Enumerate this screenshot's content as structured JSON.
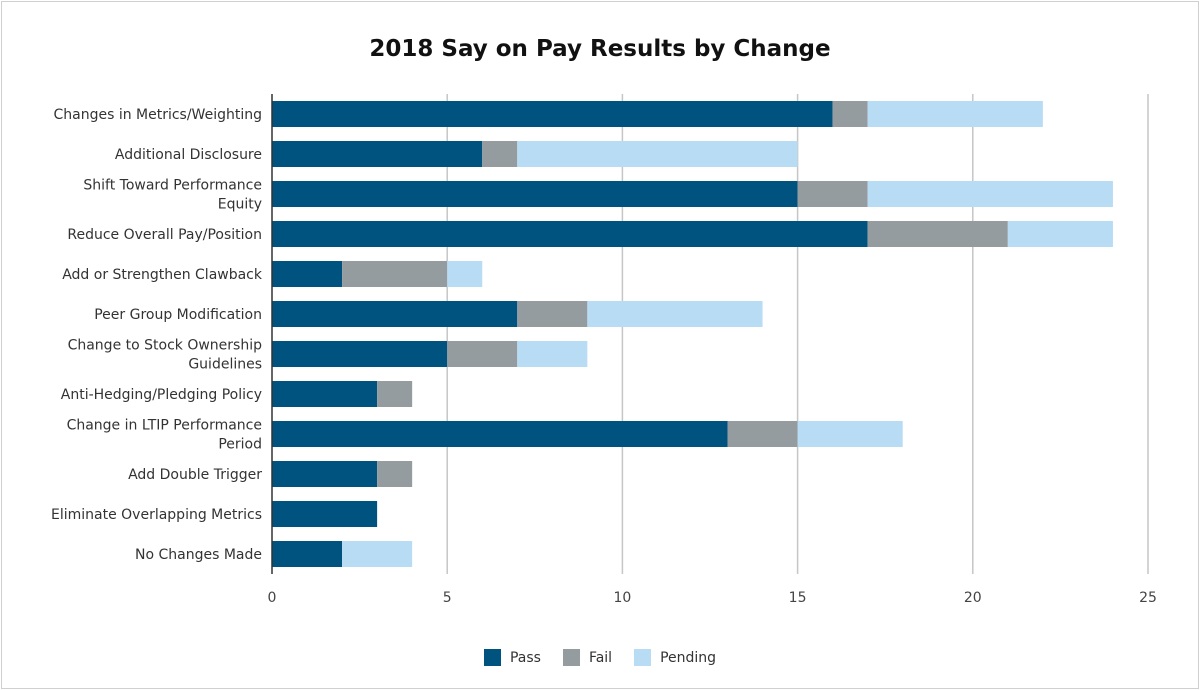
{
  "chart_data": {
    "type": "bar",
    "orientation": "horizontal",
    "stacked": true,
    "title": "2018 Say on Pay Results by Change",
    "categories": [
      "Changes in Metrics/Weighting",
      "Additional Disclosure",
      "Shift Toward Performance Equity",
      "Reduce Overall Pay/Position",
      "Add or Strengthen Clawback",
      "Peer Group Modification",
      "Change to Stock Ownership Guidelines",
      "Anti-Hedging/Pledging Policy",
      "Change in LTIP Performance Period",
      "Add Double Trigger",
      "Eliminate Overlapping Metrics",
      "No Changes Made"
    ],
    "series": [
      {
        "name": "Pass",
        "color": "#00527f",
        "values": [
          16,
          6,
          15,
          17,
          2,
          7,
          5,
          3,
          13,
          3,
          3,
          2
        ]
      },
      {
        "name": "Fail",
        "color": "#959ca0",
        "values": [
          1,
          1,
          2,
          4,
          3,
          2,
          2,
          1,
          2,
          1,
          0,
          0
        ]
      },
      {
        "name": "Pending",
        "color": "#b9dcf5",
        "values": [
          5,
          8,
          7,
          3,
          1,
          5,
          2,
          0,
          3,
          0,
          0,
          2
        ]
      }
    ],
    "xlim": [
      0,
      25
    ],
    "xticks": [
      0,
      5,
      10,
      15,
      20,
      25
    ],
    "grid": true,
    "legend_position": "bottom"
  }
}
